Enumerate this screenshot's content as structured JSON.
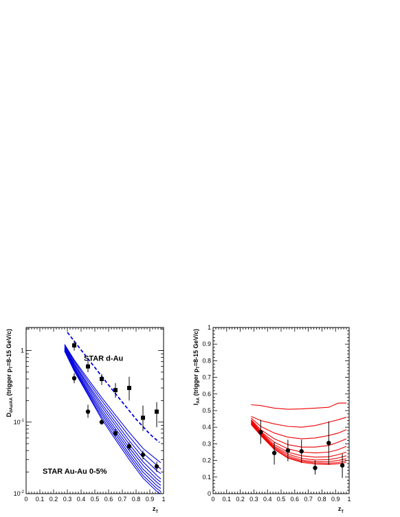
{
  "chart_data": [
    {
      "type": "line",
      "panel": "left",
      "xlabel": "z",
      "xlabel_sub": "T",
      "ylabel_parts": [
        "D",
        "dAu/AA",
        " (trigger p",
        "T",
        "=8-15 GeV/c)"
      ],
      "xlim": [
        0,
        1
      ],
      "ylim": [
        0.01,
        2.1
      ],
      "yscale": "log",
      "x_ticks": [
        "0",
        "0.1",
        "0.2",
        "0.3",
        "0.4",
        "0.5",
        "0.6",
        "0.7",
        "0.8",
        "0.9",
        "1"
      ],
      "y_ticks": [
        {
          "value": 1,
          "label": "1"
        },
        {
          "value": 0.1,
          "label": "10",
          "exp": "-1"
        },
        {
          "value": 0.01,
          "label": "10",
          "exp": "-2"
        }
      ],
      "annotations": [
        {
          "text": "STAR d-Au",
          "x": 0.42,
          "y": 0.72
        },
        {
          "text": "STAR Au-Au 0-5%",
          "x": 0.12,
          "y": 0.019
        }
      ],
      "line_color": "#0000dd",
      "dashed_curve": {
        "x": [
          0.3,
          0.4,
          0.5,
          0.6,
          0.7,
          0.8,
          0.9,
          0.97
        ],
        "y": [
          1.8,
          1.02,
          0.58,
          0.33,
          0.19,
          0.11,
          0.068,
          0.052
        ]
      },
      "solid_x": [
        0.28,
        0.35,
        0.45,
        0.55,
        0.65,
        0.75,
        0.85,
        0.95,
        0.98
      ],
      "solid_curves": [
        [
          1.22,
          0.74,
          0.4,
          0.22,
          0.125,
          0.072,
          0.043,
          0.03,
          0.027
        ],
        [
          1.18,
          0.71,
          0.37,
          0.2,
          0.112,
          0.063,
          0.037,
          0.025,
          0.022
        ],
        [
          1.14,
          0.67,
          0.34,
          0.18,
          0.1,
          0.055,
          0.032,
          0.021,
          0.019
        ],
        [
          1.1,
          0.64,
          0.32,
          0.165,
          0.09,
          0.049,
          0.028,
          0.018,
          0.016
        ],
        [
          1.07,
          0.61,
          0.3,
          0.15,
          0.081,
          0.044,
          0.025,
          0.016,
          0.0145
        ],
        [
          1.04,
          0.58,
          0.28,
          0.138,
          0.074,
          0.04,
          0.022,
          0.0145,
          0.013
        ],
        [
          1.02,
          0.56,
          0.265,
          0.128,
          0.068,
          0.036,
          0.02,
          0.013,
          0.0118
        ],
        [
          1.0,
          0.54,
          0.25,
          0.118,
          0.062,
          0.033,
          0.018,
          0.0118,
          0.0107
        ],
        [
          0.98,
          0.52,
          0.24,
          0.11,
          0.057,
          0.03,
          0.0165,
          0.0108,
          0.0098
        ]
      ],
      "series": [
        {
          "marker": "square",
          "x": [
            0.35,
            0.45,
            0.55,
            0.65,
            0.75,
            0.85,
            0.95
          ],
          "y": [
            1.18,
            0.6,
            0.4,
            0.28,
            0.3,
            0.115,
            0.14
          ],
          "ylo": [
            1.0,
            0.5,
            0.33,
            0.22,
            0.2,
            0.075,
            0.085
          ],
          "yhi": [
            1.38,
            0.72,
            0.47,
            0.35,
            0.43,
            0.17,
            0.19
          ]
        },
        {
          "marker": "circle",
          "x": [
            0.35,
            0.45,
            0.55,
            0.65,
            0.75,
            0.85,
            0.95
          ],
          "y": [
            0.41,
            0.14,
            0.1,
            0.07,
            0.046,
            0.035,
            0.024
          ],
          "ylo": [
            0.35,
            0.115,
            0.092,
            0.062,
            0.04,
            0.03,
            0.02
          ],
          "yhi": [
            0.48,
            0.175,
            0.11,
            0.08,
            0.052,
            0.04,
            0.028
          ]
        }
      ]
    },
    {
      "type": "line",
      "panel": "right",
      "xlabel": "z",
      "xlabel_sub": "T",
      "ylabel_parts": [
        "I",
        "AA",
        " (trigger p",
        "T",
        "=8-15 GeV/c)"
      ],
      "xlim": [
        0,
        1
      ],
      "ylim": [
        0,
        1
      ],
      "yscale": "linear",
      "x_ticks": [
        "0",
        "0.1",
        "0.2",
        "0.3",
        "0.4",
        "0.5",
        "0.6",
        "0.7",
        "0.8",
        "0.9",
        "1"
      ],
      "y_ticks": [
        "0",
        "0.1",
        "0.2",
        "0.3",
        "0.4",
        "0.5",
        "0.6",
        "0.7",
        "0.8",
        "0.9",
        "1"
      ],
      "line_color": "#ee0000",
      "curve_x": [
        0.28,
        0.35,
        0.45,
        0.55,
        0.65,
        0.75,
        0.85,
        0.92,
        0.98
      ],
      "curves": [
        [
          0.535,
          0.53,
          0.515,
          0.508,
          0.51,
          0.515,
          0.52,
          0.545,
          0.545
        ],
        [
          0.465,
          0.44,
          0.42,
          0.405,
          0.4,
          0.41,
          0.43,
          0.445,
          0.46
        ],
        [
          0.455,
          0.405,
          0.365,
          0.34,
          0.33,
          0.335,
          0.35,
          0.365,
          0.385
        ],
        [
          0.445,
          0.385,
          0.33,
          0.295,
          0.28,
          0.28,
          0.29,
          0.31,
          0.33
        ],
        [
          0.44,
          0.375,
          0.31,
          0.27,
          0.25,
          0.245,
          0.25,
          0.265,
          0.285
        ],
        [
          0.435,
          0.37,
          0.295,
          0.25,
          0.228,
          0.22,
          0.222,
          0.235,
          0.25
        ],
        [
          0.43,
          0.365,
          0.285,
          0.238,
          0.213,
          0.203,
          0.205,
          0.215,
          0.228
        ],
        [
          0.425,
          0.36,
          0.278,
          0.228,
          0.202,
          0.192,
          0.192,
          0.2,
          0.21
        ],
        [
          0.42,
          0.355,
          0.272,
          0.22,
          0.195,
          0.185,
          0.183,
          0.188,
          0.198
        ],
        [
          0.416,
          0.35,
          0.266,
          0.214,
          0.189,
          0.178,
          0.176,
          0.18,
          0.188
        ]
      ],
      "series": [
        {
          "marker": "circle",
          "x": [
            0.35,
            0.45,
            0.55,
            0.65,
            0.75,
            0.85,
            0.95
          ],
          "y": [
            0.37,
            0.245,
            0.26,
            0.255,
            0.155,
            0.305,
            0.17
          ],
          "ylo": [
            0.3,
            0.175,
            0.195,
            0.185,
            0.115,
            0.175,
            0.095
          ],
          "yhi": [
            0.445,
            0.31,
            0.325,
            0.325,
            0.2,
            0.435,
            0.24
          ]
        }
      ]
    }
  ]
}
